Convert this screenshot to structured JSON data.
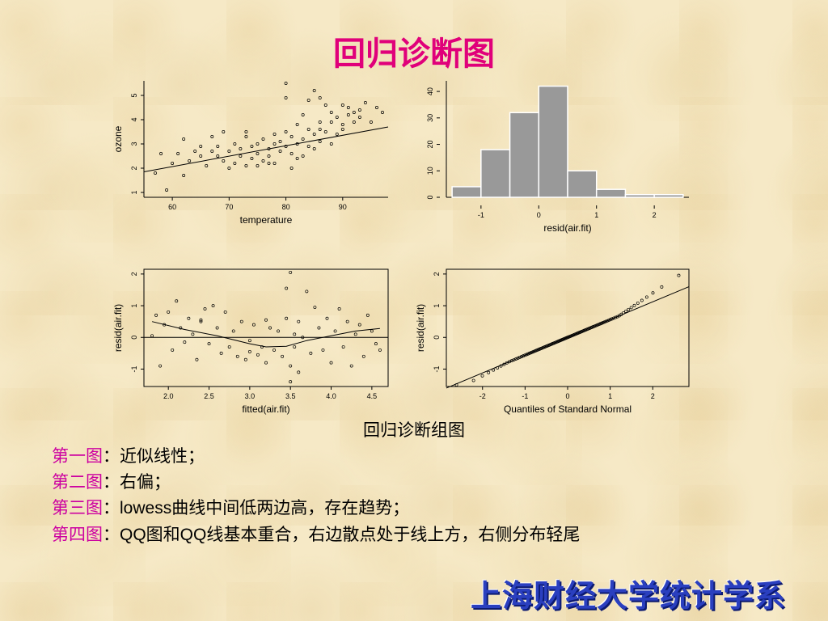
{
  "slide": {
    "title": "回归诊断图",
    "caption": "回归诊断组图",
    "notes": [
      {
        "label": "第一图",
        "sep": "：",
        "text": "近似线性；"
      },
      {
        "label": "第二图",
        "sep": "：",
        "text": "右偏；"
      },
      {
        "label": "第三图",
        "sep": "：",
        "text_latin": "lowess",
        "text": "曲线中间低两边高，存在趋势；"
      },
      {
        "label": "第四图",
        "sep": "：",
        "text_latin": "QQ",
        "text": "图和",
        "text_latin2": "QQ",
        "text2": "线基本重合，右边散点处于线上方，右侧分布轻尾"
      }
    ],
    "brand": "上海财经大学统计学系",
    "colors": {
      "title": "#e0007a",
      "label": "#cc00a0",
      "brand": "#2a3fbf",
      "bar_fill": "#999999"
    }
  },
  "chart_data": [
    {
      "type": "scatter",
      "xlabel": "temperature",
      "ylabel": "ozone",
      "xlim": [
        55,
        98
      ],
      "ylim": [
        0.8,
        5.6
      ],
      "xticks": [
        "60",
        "70",
        "80",
        "90"
      ],
      "yticks": [
        "1",
        "2",
        "3",
        "4",
        "5"
      ],
      "fit_line": {
        "x": [
          55,
          98
        ],
        "y": [
          1.85,
          3.7
        ]
      },
      "points": [
        [
          57,
          1.8
        ],
        [
          58,
          2.6
        ],
        [
          59,
          1.1
        ],
        [
          60,
          2.2
        ],
        [
          61,
          2.6
        ],
        [
          62,
          1.7
        ],
        [
          62,
          3.2
        ],
        [
          63,
          2.3
        ],
        [
          64,
          2.7
        ],
        [
          65,
          2.5
        ],
        [
          65,
          2.9
        ],
        [
          66,
          2.1
        ],
        [
          67,
          2.7
        ],
        [
          67,
          3.3
        ],
        [
          68,
          2.5
        ],
        [
          68,
          2.9
        ],
        [
          69,
          2.3
        ],
        [
          69,
          3.5
        ],
        [
          70,
          2.0
        ],
        [
          70,
          2.7
        ],
        [
          71,
          2.2
        ],
        [
          71,
          3.0
        ],
        [
          72,
          2.5
        ],
        [
          72,
          2.8
        ],
        [
          73,
          2.1
        ],
        [
          73,
          3.3
        ],
        [
          74,
          2.4
        ],
        [
          74,
          2.9
        ],
        [
          75,
          2.1
        ],
        [
          75,
          3.0
        ],
        [
          75,
          2.6
        ],
        [
          76,
          2.3
        ],
        [
          76,
          3.2
        ],
        [
          77,
          2.8
        ],
        [
          77,
          2.5
        ],
        [
          78,
          3.0
        ],
        [
          78,
          2.2
        ],
        [
          78,
          3.4
        ],
        [
          79,
          2.7
        ],
        [
          79,
          3.1
        ],
        [
          80,
          2.9
        ],
        [
          80,
          3.5
        ],
        [
          80,
          4.9
        ],
        [
          81,
          2.0
        ],
        [
          81,
          3.3
        ],
        [
          81,
          2.6
        ],
        [
          82,
          3.0
        ],
        [
          82,
          3.8
        ],
        [
          82,
          2.4
        ],
        [
          83,
          3.2
        ],
        [
          83,
          2.5
        ],
        [
          83,
          4.2
        ],
        [
          84,
          2.9
        ],
        [
          84,
          3.6
        ],
        [
          84,
          4.8
        ],
        [
          85,
          3.4
        ],
        [
          85,
          2.8
        ],
        [
          85,
          5.2
        ],
        [
          86,
          3.1
        ],
        [
          86,
          3.9
        ],
        [
          86,
          3.6
        ],
        [
          87,
          3.5
        ],
        [
          87,
          4.6
        ],
        [
          88,
          3.0
        ],
        [
          88,
          4.3
        ],
        [
          88,
          3.9
        ],
        [
          89,
          3.4
        ],
        [
          89,
          4.1
        ],
        [
          90,
          3.8
        ],
        [
          90,
          4.6
        ],
        [
          90,
          3.6
        ],
        [
          91,
          4.2
        ],
        [
          91,
          4.5
        ],
        [
          92,
          3.9
        ],
        [
          92,
          4.3
        ],
        [
          93,
          4.4
        ],
        [
          93,
          4.1
        ],
        [
          94,
          4.7
        ],
        [
          95,
          3.9
        ],
        [
          96,
          4.5
        ],
        [
          97,
          4.3
        ],
        [
          80,
          5.5
        ],
        [
          77,
          2.2
        ],
        [
          73,
          3.5
        ],
        [
          86,
          4.9
        ]
      ]
    },
    {
      "type": "bar",
      "xlabel": "resid(air.fit)",
      "ylabel": "",
      "xlim": [
        -1.6,
        2.6
      ],
      "ylim": [
        0,
        44
      ],
      "xticks": [
        "-1",
        "0",
        "1",
        "2"
      ],
      "yticks": [
        "0",
        "10",
        "20",
        "30",
        "40"
      ],
      "bins": [
        [
          -1.5,
          -1.0
        ],
        [
          -1.0,
          -0.5
        ],
        [
          -0.5,
          0.0
        ],
        [
          0.0,
          0.5
        ],
        [
          0.5,
          1.0
        ],
        [
          1.0,
          1.5
        ],
        [
          1.5,
          2.0
        ],
        [
          2.0,
          2.5
        ]
      ],
      "values": [
        4,
        18,
        32,
        42,
        10,
        3,
        1,
        1
      ]
    },
    {
      "type": "scatter",
      "xlabel": "fitted(air.fit)",
      "ylabel": "resid(air.fit)",
      "xlim": [
        1.7,
        4.7
      ],
      "ylim": [
        -1.55,
        2.15
      ],
      "xticks": [
        "2.0",
        "2.5",
        "3.0",
        "3.5",
        "4.0",
        "4.5"
      ],
      "yticks": [
        "-1",
        "0",
        "1",
        "2"
      ],
      "hline": 0,
      "lowess": {
        "x": [
          1.8,
          2.2,
          2.6,
          3.0,
          3.2,
          3.45,
          3.7,
          4.0,
          4.3,
          4.6
        ],
        "y": [
          0.5,
          0.25,
          0.05,
          -0.2,
          -0.3,
          -0.28,
          -0.1,
          0.05,
          0.2,
          0.28
        ]
      },
      "points": [
        [
          1.8,
          0.05
        ],
        [
          1.85,
          0.7
        ],
        [
          1.9,
          -0.9
        ],
        [
          1.95,
          0.4
        ],
        [
          2.0,
          0.8
        ],
        [
          2.05,
          -0.4
        ],
        [
          2.1,
          1.15
        ],
        [
          2.15,
          0.3
        ],
        [
          2.2,
          -0.15
        ],
        [
          2.25,
          0.6
        ],
        [
          2.3,
          0.1
        ],
        [
          2.35,
          -0.7
        ],
        [
          2.4,
          0.5
        ],
        [
          2.45,
          0.9
        ],
        [
          2.5,
          -0.2
        ],
        [
          2.55,
          1.0
        ],
        [
          2.6,
          0.3
        ],
        [
          2.65,
          -0.5
        ],
        [
          2.7,
          0.8
        ],
        [
          2.75,
          -0.3
        ],
        [
          2.8,
          0.2
        ],
        [
          2.85,
          -0.6
        ],
        [
          2.9,
          0.5
        ],
        [
          2.95,
          -0.7
        ],
        [
          3.0,
          -0.1
        ],
        [
          3.05,
          0.4
        ],
        [
          3.1,
          -0.55
        ],
        [
          3.15,
          -0.3
        ],
        [
          3.2,
          -0.8
        ],
        [
          3.25,
          0.3
        ],
        [
          3.3,
          -0.4
        ],
        [
          3.35,
          0.2
        ],
        [
          3.4,
          -0.6
        ],
        [
          3.45,
          0.6
        ],
        [
          3.45,
          1.55
        ],
        [
          3.5,
          -0.9
        ],
        [
          3.5,
          2.05
        ],
        [
          3.5,
          -1.4
        ],
        [
          3.55,
          0.1
        ],
        [
          3.55,
          -0.3
        ],
        [
          3.6,
          0.5
        ],
        [
          3.6,
          -1.1
        ],
        [
          3.65,
          0.0
        ],
        [
          3.7,
          1.45
        ],
        [
          3.75,
          -0.5
        ],
        [
          3.8,
          0.95
        ],
        [
          3.85,
          0.3
        ],
        [
          3.9,
          -0.4
        ],
        [
          3.95,
          0.6
        ],
        [
          4.0,
          -0.8
        ],
        [
          4.05,
          0.2
        ],
        [
          4.1,
          0.9
        ],
        [
          4.15,
          -0.3
        ],
        [
          4.2,
          0.5
        ],
        [
          4.25,
          -0.9
        ],
        [
          4.3,
          0.1
        ],
        [
          4.35,
          0.4
        ],
        [
          4.4,
          -0.6
        ],
        [
          4.45,
          0.7
        ],
        [
          4.5,
          0.2
        ],
        [
          4.55,
          -0.2
        ],
        [
          4.6,
          -0.4
        ],
        [
          3.0,
          -0.45
        ],
        [
          3.2,
          0.55
        ],
        [
          2.4,
          0.55
        ]
      ]
    },
    {
      "type": "scatter",
      "xlabel": "Quantiles of Standard Normal",
      "ylabel": "resid(air.fit)",
      "xlim": [
        -2.85,
        2.85
      ],
      "ylim": [
        -1.55,
        2.15
      ],
      "xticks": [
        "-2",
        "-1",
        "0",
        "1",
        "2"
      ],
      "yticks": [
        "-1",
        "0",
        "1",
        "2"
      ],
      "qq_line": {
        "x": [
          -2.85,
          2.85
        ],
        "y": [
          -1.6,
          1.6
        ]
      },
      "points_n": 111,
      "resid_range": [
        -1.5,
        2.1
      ]
    }
  ]
}
